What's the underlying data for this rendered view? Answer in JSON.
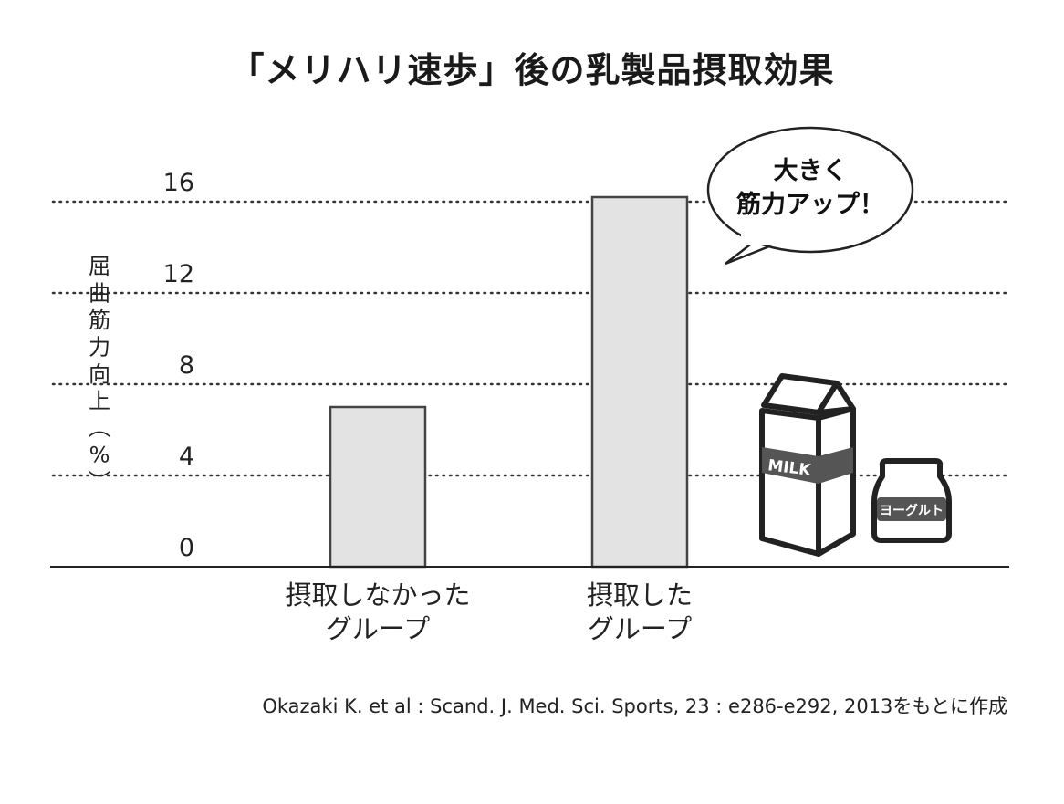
{
  "title": "「メリハリ速歩」後の乳製品摂取効果",
  "citation": "Okazaki K. et al : Scand. J. Med. Sci. Sports, 23 : e286-e292, 2013をもとに作成",
  "callout": {
    "line1": "大きく",
    "line2": "筋力アップ！"
  },
  "illustrations": {
    "milk_label": "MILK",
    "yogurt_label": "ヨーグルト"
  },
  "colors": {
    "bar_fill": "#e3e3e3",
    "bar_stroke": "#444444",
    "grid": "#333333",
    "axis": "#222222"
  },
  "chart_data": {
    "type": "bar",
    "categories": [
      [
        "摂取しなかった",
        "グループ"
      ],
      [
        "摂取した",
        "グループ"
      ]
    ],
    "values": [
      7,
      16.2
    ],
    "ylabel": "屈曲筋力向上（%）",
    "yticks": [
      0,
      4,
      8,
      12,
      16
    ],
    "ylim": [
      0,
      16
    ],
    "grid": true
  }
}
